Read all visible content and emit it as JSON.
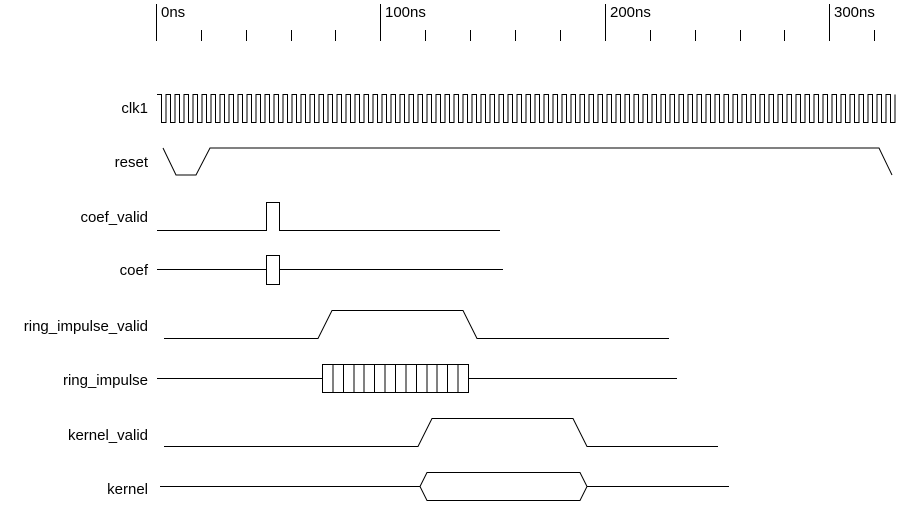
{
  "time_axis": {
    "ticks": [
      "0ns",
      "100ns",
      "200ns",
      "300ns"
    ]
  },
  "signals": [
    {
      "id": "clk1",
      "label": "clk1"
    },
    {
      "id": "reset",
      "label": "reset"
    },
    {
      "id": "coef_valid",
      "label": "coef_valid"
    },
    {
      "id": "coef",
      "label": "coef"
    },
    {
      "id": "ring_impulse_valid",
      "label": "ring_impulse_valid"
    },
    {
      "id": "ring_impulse",
      "label": "ring_impulse"
    },
    {
      "id": "kernel_valid",
      "label": "kernel_valid"
    },
    {
      "id": "kernel",
      "label": "kernel"
    }
  ]
}
